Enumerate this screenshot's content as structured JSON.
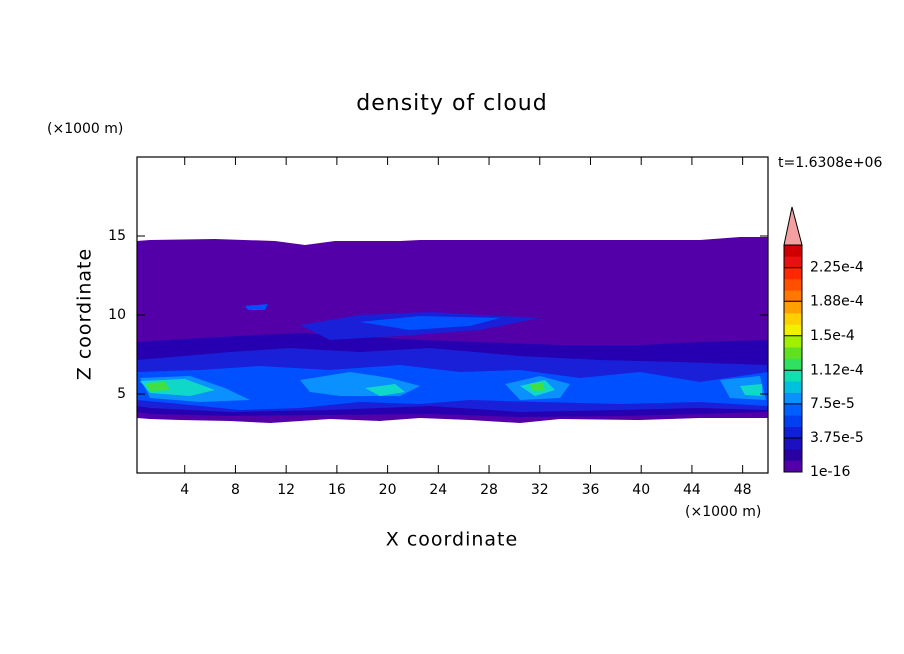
{
  "chart_data": {
    "type": "contour",
    "title": "density of cloud",
    "x_label": "X coordinate",
    "y_label": "Z coordinate",
    "x_unit": "(×1000 m)",
    "y_unit": "(×1000 m)",
    "annotation": "t=1.6308e+06",
    "xlim": [
      0,
      50
    ],
    "ylim": [
      0,
      20
    ],
    "xticks": [
      4,
      8,
      12,
      16,
      20,
      24,
      28,
      32,
      36,
      40,
      44,
      48
    ],
    "yticks": [
      5,
      10,
      15
    ],
    "colorbar": {
      "lim": [
        0,
        0.00025
      ],
      "ticks": [
        {
          "value": 1e-16,
          "label": "1e-16"
        },
        {
          "value": 3.75e-05,
          "label": "3.75e-5"
        },
        {
          "value": 7.5e-05,
          "label": "7.5e-5"
        },
        {
          "value": 0.000112,
          "label": "1.12e-4"
        },
        {
          "value": 0.00015,
          "label": "1.5e-4"
        },
        {
          "value": 0.000188,
          "label": "1.88e-4"
        },
        {
          "value": 0.000225,
          "label": "2.25e-4"
        }
      ]
    }
  }
}
